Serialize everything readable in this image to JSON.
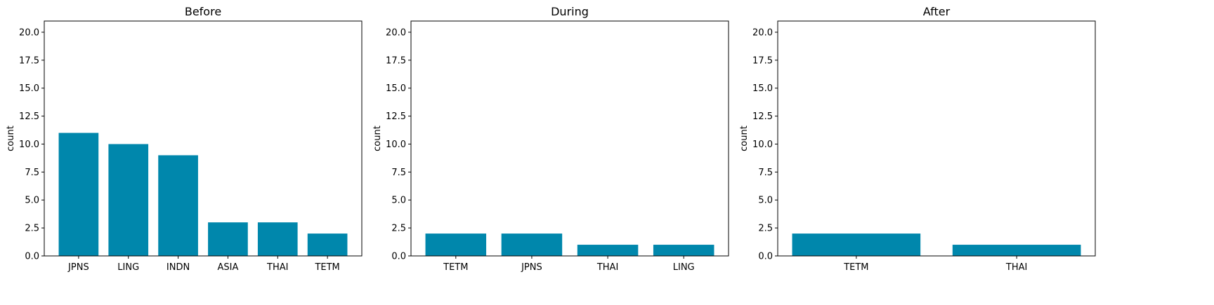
{
  "chart_data": [
    {
      "type": "bar",
      "title": "Before",
      "xlabel": "",
      "ylabel": "count",
      "categories": [
        "JPNS",
        "LING",
        "INDN",
        "ASIA",
        "THAI",
        "TETM"
      ],
      "values": [
        11,
        10,
        9,
        3,
        3,
        2
      ],
      "ylim": [
        0,
        21
      ],
      "yticks": [
        "0.0",
        "2.5",
        "5.0",
        "7.5",
        "10.0",
        "12.5",
        "15.0",
        "17.5",
        "20.0"
      ],
      "bar_color": "#0087ac",
      "grid": false
    },
    {
      "type": "bar",
      "title": "During",
      "xlabel": "",
      "ylabel": "count",
      "categories": [
        "TETM",
        "JPNS",
        "THAI",
        "LING"
      ],
      "values": [
        2,
        2,
        1,
        1
      ],
      "ylim": [
        0,
        21
      ],
      "yticks": [
        "0.0",
        "2.5",
        "5.0",
        "7.5",
        "10.0",
        "12.5",
        "15.0",
        "17.5",
        "20.0"
      ],
      "bar_color": "#0087ac",
      "grid": false
    },
    {
      "type": "bar",
      "title": "After",
      "xlabel": "",
      "ylabel": "count",
      "categories": [
        "TETM",
        "THAI"
      ],
      "values": [
        2,
        1
      ],
      "ylim": [
        0,
        21
      ],
      "yticks": [
        "0.0",
        "2.5",
        "5.0",
        "7.5",
        "10.0",
        "12.5",
        "15.0",
        "17.5",
        "20.0"
      ],
      "bar_color": "#0087ac",
      "grid": false
    }
  ]
}
